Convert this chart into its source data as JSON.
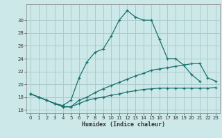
{
  "xlabel": "Humidex (Indice chaleur)",
  "bg_color": "#cce8e8",
  "grid_color": "#aacccc",
  "line_color": "#1a7070",
  "xlim": [
    -0.5,
    23.5
  ],
  "ylim": [
    15.5,
    32.5
  ],
  "xticks": [
    0,
    1,
    2,
    3,
    4,
    5,
    6,
    7,
    8,
    9,
    10,
    11,
    12,
    13,
    14,
    15,
    16,
    17,
    18,
    19,
    20,
    21,
    22,
    23
  ],
  "yticks": [
    16,
    18,
    20,
    22,
    24,
    26,
    28,
    30
  ],
  "line1_x": [
    0,
    1,
    2,
    3,
    4,
    5,
    6,
    7,
    8,
    9,
    10,
    11,
    12,
    13,
    14,
    15,
    16,
    17,
    18,
    19,
    20,
    21
  ],
  "line1_y": [
    18.5,
    18.0,
    17.5,
    17.0,
    16.7,
    17.5,
    21.0,
    23.5,
    25.0,
    25.5,
    27.5,
    30.0,
    31.5,
    30.5,
    30.0,
    30.0,
    27.0,
    24.0,
    24.0,
    23.0,
    21.5,
    20.5
  ],
  "line2_x": [
    0,
    1,
    2,
    3,
    4,
    5,
    6,
    7,
    8,
    9,
    10,
    11,
    12,
    13,
    14,
    15,
    16,
    17,
    18,
    19,
    20,
    21,
    22,
    23
  ],
  "line2_y": [
    18.5,
    18.0,
    17.5,
    17.0,
    16.5,
    16.5,
    17.5,
    18.0,
    18.7,
    19.3,
    19.8,
    20.3,
    20.8,
    21.3,
    21.7,
    22.2,
    22.4,
    22.6,
    22.8,
    23.0,
    23.2,
    23.3,
    21.0,
    20.5
  ],
  "line3_x": [
    0,
    1,
    2,
    3,
    4,
    5,
    6,
    7,
    8,
    9,
    10,
    11,
    12,
    13,
    14,
    15,
    16,
    17,
    18,
    19,
    20,
    21,
    22,
    23
  ],
  "line3_y": [
    18.5,
    18.0,
    17.5,
    17.0,
    16.5,
    16.5,
    17.0,
    17.5,
    17.8,
    18.0,
    18.3,
    18.5,
    18.8,
    19.0,
    19.2,
    19.3,
    19.4,
    19.4,
    19.4,
    19.4,
    19.4,
    19.4,
    19.4,
    19.5
  ]
}
